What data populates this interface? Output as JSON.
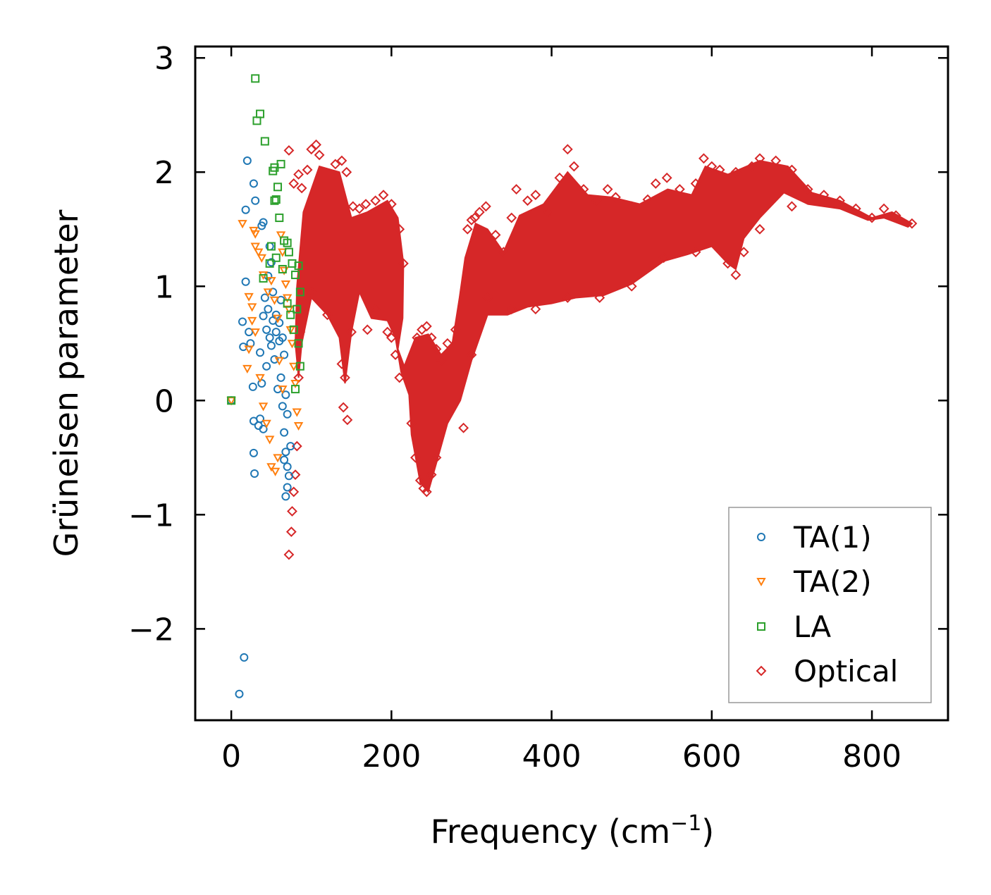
{
  "chart_data": {
    "type": "scatter",
    "title": "",
    "xlabel": "Frequency (cm",
    "xlabel_sup": "−1",
    "xlabel_close": ")",
    "ylabel": "Grüneisen parameter",
    "xlim": [
      -45,
      895
    ],
    "ylim": [
      -2.8,
      3.1
    ],
    "x_ticks": [
      0,
      200,
      400,
      600,
      800
    ],
    "y_ticks": [
      3,
      2,
      1,
      0,
      -1,
      -2
    ],
    "x_tick_labels": [
      "0",
      "200",
      "400",
      "600",
      "800"
    ],
    "y_tick_labels": [
      "3",
      "2",
      "1",
      "0",
      "−1",
      "−2"
    ],
    "legend_position": "bottom-right",
    "grid": false,
    "series": [
      {
        "name": "TA(1)",
        "marker": "circle",
        "color": "#1f77b4",
        "points": [
          [
            0,
            0
          ],
          [
            10,
            -2.57
          ],
          [
            16,
            -2.25
          ],
          [
            20,
            2.1
          ],
          [
            18,
            1.67
          ],
          [
            28,
            1.9
          ],
          [
            30,
            1.75
          ],
          [
            38,
            1.53
          ],
          [
            40,
            1.56
          ],
          [
            18,
            1.04
          ],
          [
            14,
            0.69
          ],
          [
            15,
            0.47
          ],
          [
            22,
            0.6
          ],
          [
            24,
            0.5
          ],
          [
            27,
            0.12
          ],
          [
            28,
            -0.18
          ],
          [
            28,
            -0.46
          ],
          [
            29,
            -0.64
          ],
          [
            34,
            -0.22
          ],
          [
            36,
            -0.16
          ],
          [
            40,
            -0.25
          ],
          [
            44,
            0.3
          ],
          [
            46,
            1.09
          ],
          [
            48,
            1.35
          ],
          [
            50,
            1.21
          ],
          [
            52,
            0.95
          ],
          [
            56,
            0.75
          ],
          [
            60,
            0.52
          ],
          [
            62,
            0.2
          ],
          [
            64,
            -0.05
          ],
          [
            66,
            -0.28
          ],
          [
            68,
            -0.45
          ],
          [
            70,
            -0.58
          ],
          [
            72,
            -0.66
          ],
          [
            70,
            -0.76
          ],
          [
            68,
            -0.84
          ],
          [
            66,
            -0.52
          ],
          [
            74,
            -0.4
          ],
          [
            44,
            0.62
          ],
          [
            46,
            0.8
          ],
          [
            50,
            0.48
          ],
          [
            54,
            0.36
          ],
          [
            58,
            0.1
          ],
          [
            60,
            0.68
          ],
          [
            62,
            0.88
          ],
          [
            64,
            0.55
          ],
          [
            66,
            0.4
          ],
          [
            68,
            0.05
          ],
          [
            70,
            -0.12
          ],
          [
            56,
            0.6
          ],
          [
            52,
            0.7
          ],
          [
            48,
            0.55
          ],
          [
            42,
            0.9
          ],
          [
            40,
            0.74
          ],
          [
            38,
            0.15
          ],
          [
            36,
            0.42
          ]
        ]
      },
      {
        "name": "TA(2)",
        "marker": "triangle-down",
        "color": "#ff7f0e",
        "points": [
          [
            0,
            0
          ],
          [
            14,
            1.55
          ],
          [
            22,
            0.91
          ],
          [
            26,
            0.82
          ],
          [
            30,
            1.46
          ],
          [
            28,
            1.49
          ],
          [
            30,
            1.35
          ],
          [
            34,
            1.3
          ],
          [
            38,
            1.25
          ],
          [
            40,
            1.1
          ],
          [
            20,
            0.28
          ],
          [
            22,
            0.45
          ],
          [
            26,
            0.7
          ],
          [
            30,
            0.6
          ],
          [
            36,
            0.2
          ],
          [
            40,
            -0.05
          ],
          [
            44,
            -0.2
          ],
          [
            48,
            -0.34
          ],
          [
            50,
            -0.58
          ],
          [
            55,
            -0.62
          ],
          [
            58,
            -0.5
          ],
          [
            62,
            1.45
          ],
          [
            64,
            1.3
          ],
          [
            66,
            1.14
          ],
          [
            68,
            1.02
          ],
          [
            70,
            0.9
          ],
          [
            72,
            0.8
          ],
          [
            74,
            0.62
          ],
          [
            76,
            0.5
          ],
          [
            78,
            0.3
          ],
          [
            80,
            0.15
          ],
          [
            82,
            -0.1
          ],
          [
            84,
            -0.22
          ],
          [
            46,
            0.95
          ],
          [
            50,
            1.05
          ],
          [
            54,
            0.88
          ],
          [
            58,
            0.72
          ],
          [
            60,
            0.35
          ],
          [
            64,
            0.1
          ]
        ]
      },
      {
        "name": "LA",
        "marker": "square",
        "color": "#2ca02c",
        "points": [
          [
            0,
            0
          ],
          [
            30,
            2.82
          ],
          [
            32,
            2.45
          ],
          [
            36,
            2.51
          ],
          [
            42,
            2.27
          ],
          [
            52,
            2.01
          ],
          [
            54,
            2.04
          ],
          [
            62,
            2.07
          ],
          [
            58,
            1.87
          ],
          [
            54,
            1.75
          ],
          [
            56,
            1.76
          ],
          [
            60,
            1.6
          ],
          [
            50,
            1.35
          ],
          [
            48,
            1.2
          ],
          [
            40,
            1.07
          ],
          [
            56,
            1.25
          ],
          [
            64,
            1.15
          ],
          [
            66,
            1.4
          ],
          [
            70,
            1.38
          ],
          [
            72,
            1.3
          ],
          [
            76,
            1.2
          ],
          [
            80,
            1.1
          ],
          [
            84,
            1.18
          ],
          [
            86,
            0.95
          ],
          [
            82,
            0.8
          ],
          [
            78,
            0.62
          ],
          [
            84,
            0.5
          ],
          [
            86,
            0.3
          ],
          [
            80,
            0.1
          ],
          [
            70,
            0.85
          ],
          [
            74,
            0.75
          ]
        ]
      },
      {
        "name": "Optical",
        "marker": "diamond",
        "color": "#d62728",
        "points": [
          [
            72,
            2.19
          ],
          [
            78,
            1.9
          ],
          [
            84,
            1.98
          ],
          [
            88,
            1.86
          ],
          [
            95,
            2.02
          ],
          [
            100,
            2.2
          ],
          [
            106,
            2.24
          ],
          [
            110,
            2.15
          ],
          [
            130,
            2.07
          ],
          [
            138,
            2.1
          ],
          [
            144,
            2.0
          ],
          [
            152,
            1.7
          ],
          [
            160,
            1.68
          ],
          [
            168,
            1.72
          ],
          [
            180,
            1.75
          ],
          [
            190,
            1.8
          ],
          [
            200,
            1.72
          ],
          [
            210,
            1.5
          ],
          [
            215,
            1.2
          ],
          [
            205,
            0.4
          ],
          [
            200,
            0.55
          ],
          [
            210,
            0.2
          ],
          [
            195,
            0.6
          ],
          [
            180,
            0.8
          ],
          [
            170,
            0.62
          ],
          [
            150,
            0.6
          ],
          [
            142,
            0.2
          ],
          [
            140,
            -0.06
          ],
          [
            145,
            -0.17
          ],
          [
            138,
            0.32
          ],
          [
            120,
            0.75
          ],
          [
            100,
            0.95
          ],
          [
            86,
            0.6
          ],
          [
            84,
            0.2
          ],
          [
            82,
            -0.4
          ],
          [
            80,
            -0.65
          ],
          [
            78,
            -0.8
          ],
          [
            76,
            -0.97
          ],
          [
            75,
            -1.15
          ],
          [
            72,
            -1.35
          ],
          [
            232,
            0.55
          ],
          [
            238,
            0.62
          ],
          [
            244,
            0.65
          ],
          [
            250,
            0.55
          ],
          [
            256,
            0.45
          ],
          [
            262,
            0.35
          ],
          [
            270,
            0.5
          ],
          [
            280,
            0.62
          ],
          [
            290,
            -0.24
          ],
          [
            295,
            1.5
          ],
          [
            300,
            1.58
          ],
          [
            304,
            1.6
          ],
          [
            310,
            1.65
          ],
          [
            318,
            1.7
          ],
          [
            330,
            1.45
          ],
          [
            340,
            1.3
          ],
          [
            350,
            1.6
          ],
          [
            356,
            1.85
          ],
          [
            370,
            1.75
          ],
          [
            380,
            1.8
          ],
          [
            396,
            1.65
          ],
          [
            410,
            1.95
          ],
          [
            420,
            2.2
          ],
          [
            428,
            2.05
          ],
          [
            440,
            1.85
          ],
          [
            456,
            1.75
          ],
          [
            470,
            1.85
          ],
          [
            480,
            1.78
          ],
          [
            500,
            1.7
          ],
          [
            520,
            1.76
          ],
          [
            530,
            1.9
          ],
          [
            544,
            1.95
          ],
          [
            560,
            1.85
          ],
          [
            580,
            1.9
          ],
          [
            590,
            2.12
          ],
          [
            600,
            2.05
          ],
          [
            610,
            2.02
          ],
          [
            630,
            2.0
          ],
          [
            650,
            2.05
          ],
          [
            660,
            2.12
          ],
          [
            680,
            2.1
          ],
          [
            700,
            2.02
          ],
          [
            720,
            1.85
          ],
          [
            740,
            1.8
          ],
          [
            760,
            1.75
          ],
          [
            780,
            1.68
          ],
          [
            800,
            1.6
          ],
          [
            815,
            1.68
          ],
          [
            830,
            1.62
          ],
          [
            850,
            1.55
          ],
          [
            225,
            -0.2
          ],
          [
            230,
            -0.5
          ],
          [
            236,
            -0.7
          ],
          [
            240,
            -0.77
          ],
          [
            244,
            -0.8
          ],
          [
            250,
            -0.65
          ],
          [
            256,
            -0.5
          ],
          [
            300,
            0.4
          ],
          [
            320,
            0.9
          ],
          [
            350,
            0.8
          ],
          [
            380,
            0.8
          ],
          [
            420,
            0.9
          ],
          [
            460,
            0.9
          ],
          [
            500,
            1.0
          ],
          [
            540,
            1.25
          ],
          [
            580,
            1.3
          ],
          [
            620,
            1.2
          ],
          [
            630,
            1.1
          ],
          [
            640,
            1.3
          ],
          [
            660,
            1.5
          ],
          [
            700,
            1.7
          ]
        ]
      }
    ],
    "optical_band": [
      [
        82,
        1.0
      ],
      [
        90,
        1.65
      ],
      [
        110,
        2.05
      ],
      [
        135,
        2.0
      ],
      [
        150,
        1.6
      ],
      [
        170,
        1.65
      ],
      [
        195,
        1.75
      ],
      [
        208,
        1.6
      ],
      [
        215,
        1.2
      ],
      [
        214,
        0.72
      ],
      [
        208,
        0.45
      ],
      [
        216,
        0.3
      ],
      [
        230,
        0.55
      ],
      [
        246,
        0.58
      ],
      [
        262,
        0.4
      ],
      [
        276,
        0.5
      ],
      [
        285,
        0.9
      ],
      [
        292,
        1.25
      ],
      [
        305,
        1.55
      ],
      [
        320,
        1.5
      ],
      [
        340,
        1.3
      ],
      [
        360,
        1.62
      ],
      [
        390,
        1.72
      ],
      [
        420,
        2.0
      ],
      [
        445,
        1.8
      ],
      [
        475,
        1.78
      ],
      [
        510,
        1.72
      ],
      [
        545,
        1.85
      ],
      [
        575,
        1.8
      ],
      [
        592,
        2.05
      ],
      [
        620,
        1.98
      ],
      [
        660,
        2.1
      ],
      [
        695,
        2.05
      ],
      [
        725,
        1.82
      ],
      [
        760,
        1.75
      ],
      [
        800,
        1.6
      ],
      [
        825,
        1.65
      ],
      [
        850,
        1.55
      ],
      [
        845,
        1.52
      ],
      [
        815,
        1.6
      ],
      [
        795,
        1.58
      ],
      [
        760,
        1.68
      ],
      [
        720,
        1.72
      ],
      [
        690,
        1.82
      ],
      [
        660,
        1.6
      ],
      [
        640,
        1.42
      ],
      [
        630,
        1.15
      ],
      [
        620,
        1.2
      ],
      [
        600,
        1.35
      ],
      [
        570,
        1.28
      ],
      [
        540,
        1.22
      ],
      [
        500,
        1.02
      ],
      [
        465,
        0.92
      ],
      [
        430,
        0.9
      ],
      [
        400,
        0.85
      ],
      [
        370,
        0.82
      ],
      [
        345,
        0.75
      ],
      [
        320,
        0.75
      ],
      [
        300,
        0.35
      ],
      [
        286,
        0.0
      ],
      [
        270,
        -0.2
      ],
      [
        258,
        -0.5
      ],
      [
        246,
        -0.8
      ],
      [
        236,
        -0.72
      ],
      [
        225,
        -0.3
      ],
      [
        222,
        0.05
      ],
      [
        212,
        0.25
      ],
      [
        205,
        0.55
      ],
      [
        195,
        0.7
      ],
      [
        175,
        0.72
      ],
      [
        160,
        0.95
      ],
      [
        150,
        0.6
      ],
      [
        142,
        0.15
      ],
      [
        135,
        0.55
      ],
      [
        120,
        0.75
      ],
      [
        100,
        0.9
      ],
      [
        88,
        0.5
      ],
      [
        84,
        0.2
      ],
      [
        80,
        0.5
      ]
    ]
  }
}
